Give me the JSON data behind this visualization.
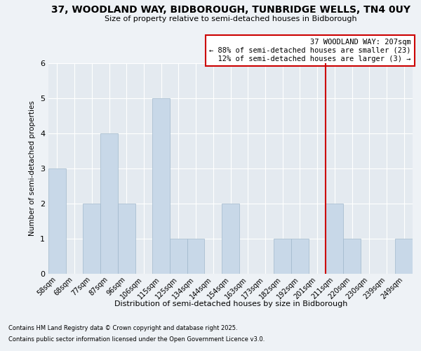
{
  "title": "37, WOODLAND WAY, BIDBOROUGH, TUNBRIDGE WELLS, TN4 0UY",
  "subtitle": "Size of property relative to semi-detached houses in Bidborough",
  "xlabel": "Distribution of semi-detached houses by size in Bidborough",
  "ylabel": "Number of semi-detached properties",
  "categories": [
    "58sqm",
    "68sqm",
    "77sqm",
    "87sqm",
    "96sqm",
    "106sqm",
    "115sqm",
    "125sqm",
    "134sqm",
    "144sqm",
    "154sqm",
    "163sqm",
    "173sqm",
    "182sqm",
    "192sqm",
    "201sqm",
    "211sqm",
    "220sqm",
    "230sqm",
    "239sqm",
    "249sqm"
  ],
  "values": [
    3,
    0,
    2,
    4,
    2,
    0,
    5,
    1,
    1,
    0,
    2,
    0,
    0,
    1,
    1,
    0,
    2,
    1,
    0,
    0,
    1
  ],
  "bar_color": "#c8d8e8",
  "bar_edge_color": "#a0b8cc",
  "highlight_line_index": 16,
  "highlight_color": "#cc0000",
  "annotation_text": "37 WOODLAND WAY: 207sqm\n← 88% of semi-detached houses are smaller (23)\n  12% of semi-detached houses are larger (3) →",
  "ylim": [
    0,
    6
  ],
  "yticks": [
    0,
    1,
    2,
    3,
    4,
    5,
    6
  ],
  "footnote1": "Contains HM Land Registry data © Crown copyright and database right 2025.",
  "footnote2": "Contains public sector information licensed under the Open Government Licence v3.0.",
  "background_color": "#eef2f6",
  "plot_bg_color": "#e4eaf0"
}
